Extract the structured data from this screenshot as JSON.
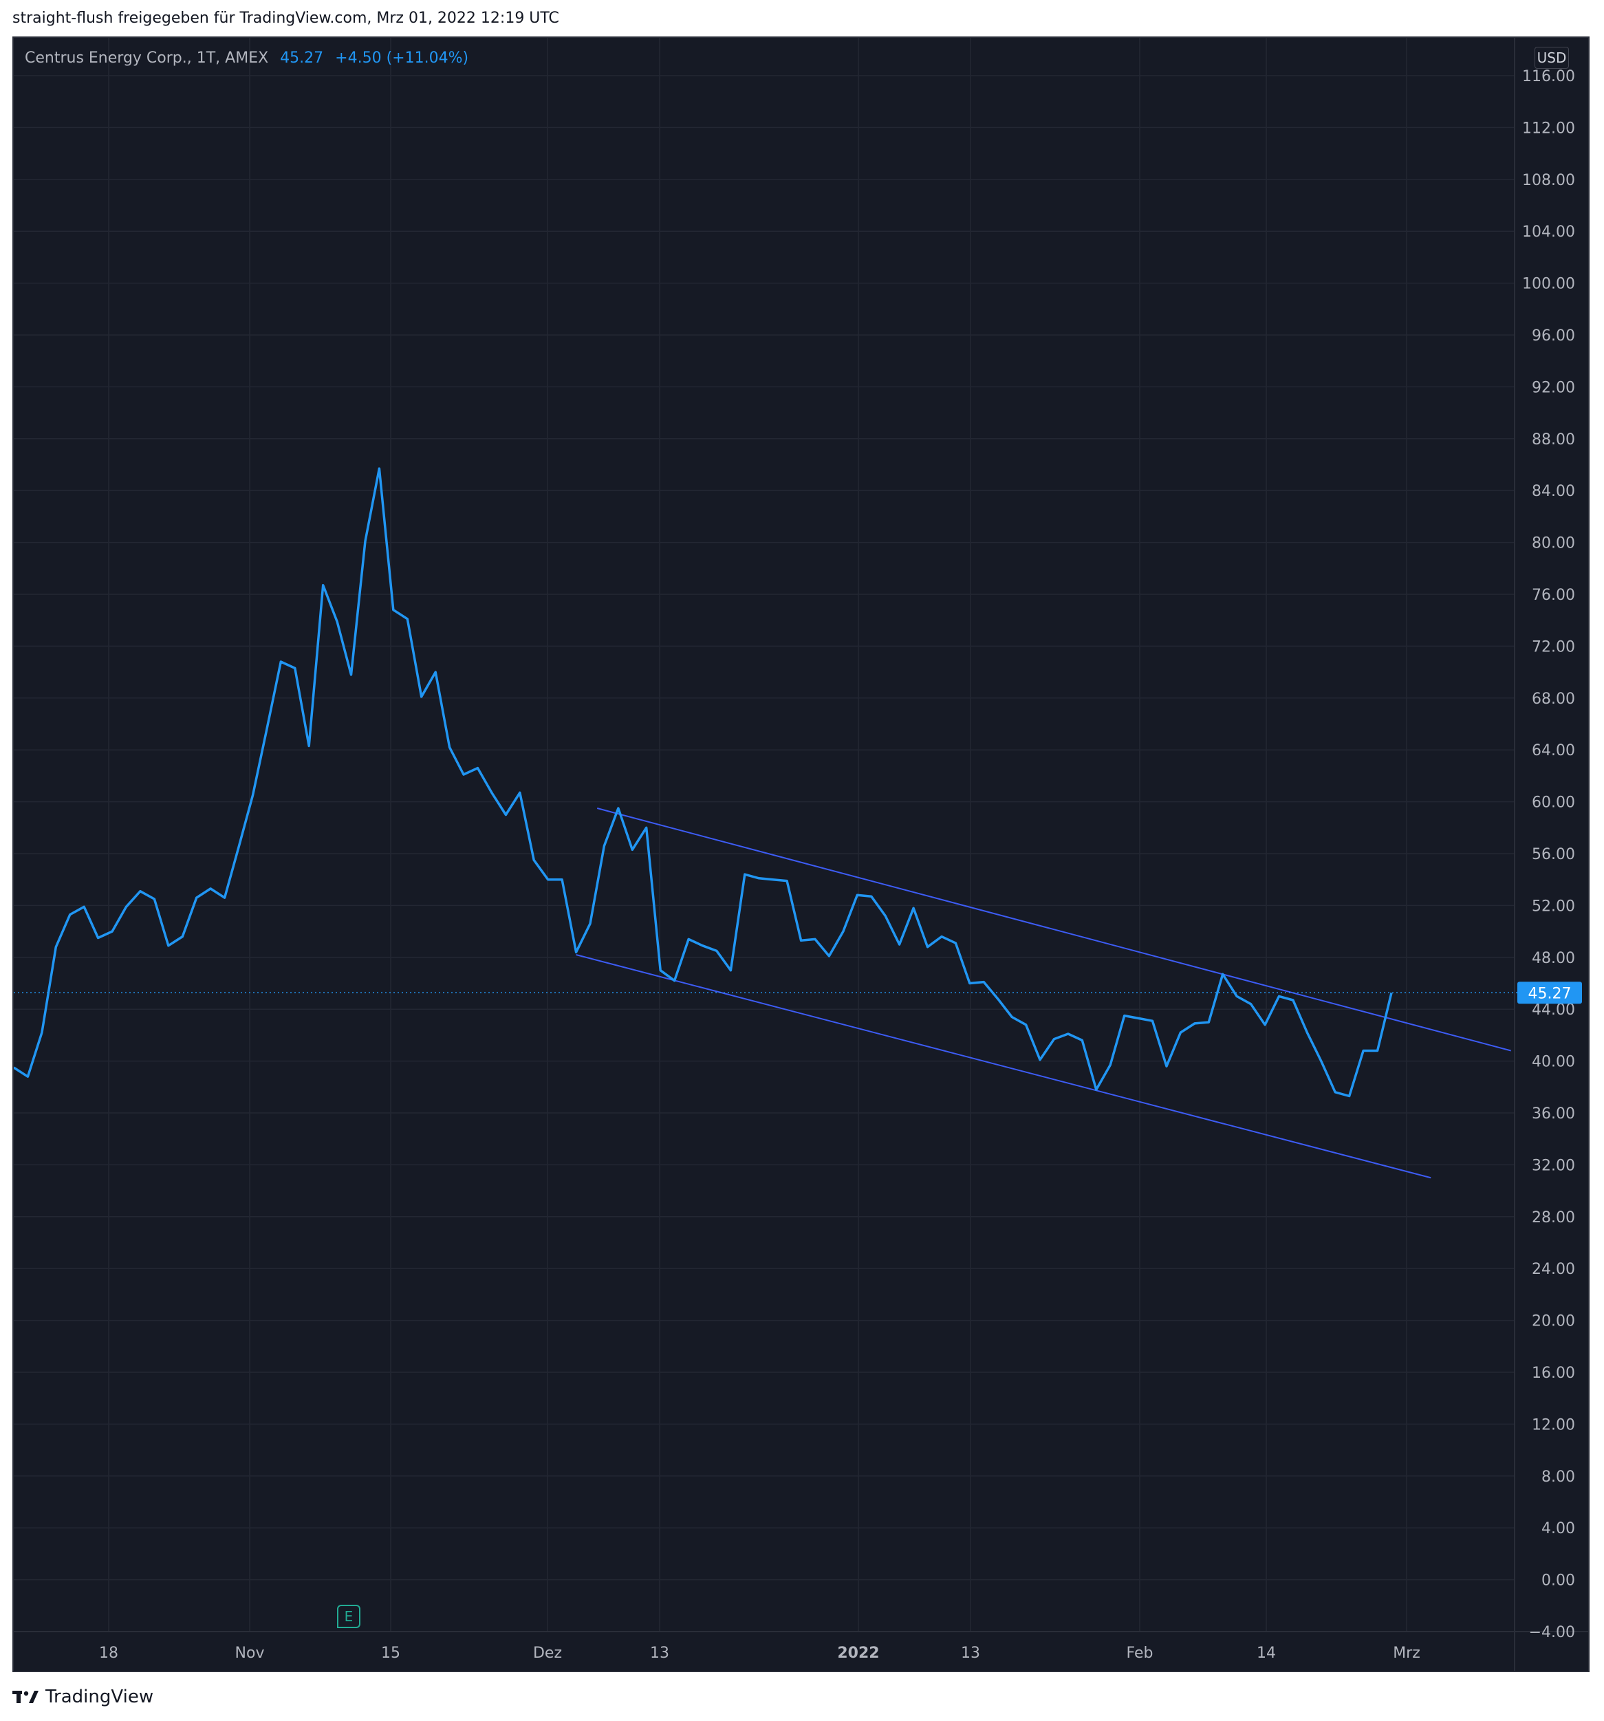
{
  "header": {
    "caption": "straight-flush freigegeben für TradingView.com, Mrz 01, 2022 12:19 UTC"
  },
  "legend": {
    "symbol": "Centrus Energy Corp., 1T, AMEX",
    "last": "45.27",
    "change": "+4.50 (+11.04%)"
  },
  "currency": "USD",
  "last_price_label": "45.27",
  "earnings_badge": "E",
  "brand": "TradingView",
  "colors": {
    "background": "#161a25",
    "grid": "#232733",
    "line": "#2196f3",
    "channel": "#3d5cf5",
    "axis_text": "#b2b5be"
  },
  "chart_data": {
    "type": "line",
    "title": "",
    "xlabel": "",
    "ylabel": "",
    "ylim": [
      -4,
      118
    ],
    "y_ticks": [
      "116.00",
      "112.00",
      "108.00",
      "104.00",
      "100.00",
      "96.00",
      "92.00",
      "88.00",
      "84.00",
      "80.00",
      "76.00",
      "72.00",
      "68.00",
      "64.00",
      "60.00",
      "56.00",
      "52.00",
      "48.00",
      "44.00",
      "40.00",
      "36.00",
      "32.00",
      "28.00",
      "24.00",
      "20.00",
      "16.00",
      "12.00",
      "8.00",
      "4.00",
      "0.00",
      "−4.00"
    ],
    "x_ticks": [
      {
        "label": "18",
        "bold": false
      },
      {
        "label": "Nov",
        "bold": false
      },
      {
        "label": "15",
        "bold": false
      },
      {
        "label": "Dez",
        "bold": false
      },
      {
        "label": "13",
        "bold": false
      },
      {
        "label": "2022",
        "bold": true
      },
      {
        "label": "13",
        "bold": false
      },
      {
        "label": "Feb",
        "bold": false
      },
      {
        "label": "14",
        "bold": false
      },
      {
        "label": "Mrz",
        "bold": false
      }
    ],
    "series": [
      {
        "values": [
          39.5,
          38.8,
          42.2,
          48.8,
          51.3,
          51.9,
          49.5,
          50.0,
          51.9,
          53.1,
          52.5,
          48.9,
          49.6,
          52.6,
          53.3,
          52.6,
          56.5,
          60.5,
          65.6,
          70.8,
          70.3,
          64.3,
          76.7,
          73.9,
          69.8,
          80.1,
          85.7,
          74.8,
          74.1,
          68.1,
          70.0,
          64.2,
          62.1,
          62.6,
          60.7,
          59.0,
          60.7,
          55.5,
          54.0,
          54.0,
          48.4,
          50.6,
          56.6,
          59.5,
          56.3,
          58.0,
          47.0,
          46.2,
          49.4,
          48.9,
          48.5,
          47.0,
          54.4,
          54.1,
          54.0,
          53.9,
          49.3,
          49.4,
          48.1,
          50.0,
          52.8,
          52.7,
          51.2,
          49.0,
          51.8,
          48.8,
          49.6,
          49.1,
          46.0,
          46.1,
          44.8,
          43.4,
          42.8,
          40.1,
          41.7,
          42.1,
          41.6,
          37.8,
          39.7,
          43.5,
          43.3,
          43.1,
          39.6,
          42.2,
          42.9,
          43.0,
          46.7,
          45.0,
          44.4,
          42.8,
          45.0,
          44.7,
          42.2,
          40.0,
          37.6,
          37.3,
          40.8,
          40.8,
          45.27
        ]
      }
    ],
    "last_price": 45.27,
    "channel_lines": [
      {
        "from": {
          "bar": 41.5,
          "value": 59.5
        },
        "to": {
          "bar": 106.5,
          "value": 40.8
        }
      },
      {
        "from": {
          "bar": 40.0,
          "value": 48.2
        },
        "to": {
          "bar": 100.8,
          "value": 31.0
        }
      }
    ]
  }
}
